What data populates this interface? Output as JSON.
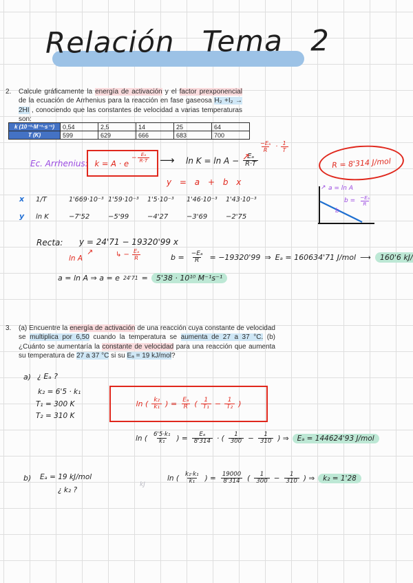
{
  "title": {
    "text": "Relación Tema 2"
  },
  "problem2": {
    "number": "2.",
    "segments": [
      {
        "v": "Calcule gráficamente la "
      },
      {
        "v": "energía de activación",
        "h": "pink"
      },
      {
        "v": " y el "
      },
      {
        "v": "factor prexponencial",
        "h": "pink"
      },
      {
        "v": " de la ecuación de Arrhenius para la reacción en fase gaseosa "
      },
      {
        "v": "H₂ +I₂ → 2HI",
        "h": "blue"
      },
      {
        "v": " , conociendo que las constantes de velocidad a varias temperaturas son:"
      }
    ],
    "table": {
      "k_label": "k (10⁻³·M⁻¹·s⁻¹)",
      "t_label": "T (K)",
      "k_values": [
        "0,54",
        "2,5",
        "14",
        "25",
        "64"
      ],
      "t_values": [
        "599",
        "629",
        "666",
        "683",
        "700"
      ]
    }
  },
  "work2": {
    "ec_label": "Ec. Arrhenius:",
    "arrhenius_boxed": [
      {
        "t": "txt",
        "v": "k = A · e"
      },
      {
        "t": "supfrac",
        "p": "−",
        "n": "Eₐ",
        "d": "R·T"
      }
    ],
    "arrow_right": "⟶",
    "ln_equation": [
      {
        "t": "txt",
        "v": "ln K = ln A −"
      },
      {
        "t": "frac",
        "n": "Eₐ",
        "d": "R·T"
      }
    ],
    "slope_arrow": "↗",
    "slope_note": [
      {
        "t": "frac",
        "n": "−Eₐ",
        "d": "R"
      },
      {
        "t": "txt",
        "v": "·"
      },
      {
        "t": "frac",
        "n": "1",
        "d": "T"
      }
    ],
    "linear_equation": "y = a + b x",
    "gas_constant": "R = 8'314 J/mol",
    "graph": {
      "a_arrow": "↗",
      "a_label": "a = ln A",
      "b_label": [
        {
          "t": "txt",
          "v": "b ="
        },
        {
          "t": "frac",
          "n": "−Eₐ",
          "d": "R"
        }
      ],
      "b_tick": "b"
    },
    "row_x": {
      "marker": "x",
      "head": "1/T",
      "values": [
        "1'669·10⁻³",
        "1'59·10⁻³",
        "1'5·10⁻³",
        "1'46·10⁻³",
        "1'43·10⁻³"
      ]
    },
    "row_y": {
      "marker": "y",
      "head": "ln K",
      "values": [
        "−7'52",
        "−5'99",
        "−4'27",
        "−3'69",
        "−2'75"
      ]
    },
    "recta_label": "Recta:",
    "recta_equation": "y = 24'71 − 19320'99 x",
    "nota_intercept_arrow": "↗",
    "nota_intercept": "ln A",
    "nota_slope": [
      {
        "t": "txt",
        "v": "↳ −"
      },
      {
        "t": "frac",
        "n": "Eₐ",
        "d": "R"
      }
    ],
    "slope_result": [
      {
        "t": "txt",
        "v": "b ="
      },
      {
        "t": "frac",
        "n": "−Eₐ",
        "d": "R"
      },
      {
        "t": "txt",
        "v": "= −19320'99"
      },
      {
        "t": "txt",
        "v": "⇒"
      },
      {
        "t": "txt",
        "v": "Eₐ = 160634'71 J/mol"
      },
      {
        "t": "txt",
        "v": "⟶"
      },
      {
        "t": "hl",
        "v": "160'6 kJ/mol"
      }
    ],
    "intercept_result": [
      {
        "t": "txt",
        "v": "a = ln A ⇒ a = e"
      },
      {
        "t": "sup",
        "v": "24'71"
      },
      {
        "t": "txt",
        "v": "="
      },
      {
        "t": "hl",
        "v": "5'38 · 10¹⁰ M⁻¹s⁻¹"
      }
    ]
  },
  "problem3": {
    "number": "3.",
    "segments": [
      {
        "v": "(a) Encuentre la "
      },
      {
        "v": "energía de activación",
        "h": "pink"
      },
      {
        "v": " de una reacción cuya constante de velocidad se "
      },
      {
        "v": "multiplica por 6,50",
        "h": "blue"
      },
      {
        "v": " cuando la temperatura se "
      },
      {
        "v": "aumenta de 27 a 37 °C.",
        "h": "blue"
      },
      {
        "v": " (b) ¿Cuánto se aumentaría la "
      },
      {
        "v": "constante de velocidad",
        "h": "pink"
      },
      {
        "v": " para una reacción que aumenta su temperatura de "
      },
      {
        "v": "27 a 37 °C",
        "h": "blue"
      },
      {
        "v": " si su "
      },
      {
        "v": "Eₐ = 19 kJ/mol",
        "h": "blue"
      },
      {
        "v": "?"
      }
    ]
  },
  "work3": {
    "a_label": "a)",
    "a_question": "¿ Eₐ ?",
    "given_k": "k₂ = 6'5 · k₁",
    "given_t1": "T₁ = 300 K",
    "given_t2": "T₂ = 310 K",
    "boxed_formula": [
      {
        "t": "txt",
        "v": "ln ("
      },
      {
        "t": "frac",
        "n": "k₂",
        "d": "k₁"
      },
      {
        "t": "txt",
        "v": ") ="
      },
      {
        "t": "frac",
        "n": "Eₐ",
        "d": "R"
      },
      {
        "t": "txt",
        "v": "("
      },
      {
        "t": "frac",
        "n": "1",
        "d": "T₁"
      },
      {
        "t": "txt",
        "v": "−"
      },
      {
        "t": "frac",
        "n": "1",
        "d": "T₂"
      },
      {
        "t": "txt",
        "v": ")"
      }
    ],
    "calc_a": [
      {
        "t": "txt",
        "v": "ln ("
      },
      {
        "t": "frac",
        "n": "6'5·k₁",
        "d": "k₁"
      },
      {
        "t": "txt",
        "v": ") ="
      },
      {
        "t": "frac",
        "n": "Eₐ",
        "d": "8'314"
      },
      {
        "t": "txt",
        "v": "· ("
      },
      {
        "t": "frac",
        "n": "1",
        "d": "300"
      },
      {
        "t": "txt",
        "v": "−"
      },
      {
        "t": "frac",
        "n": "1",
        "d": "310"
      },
      {
        "t": "txt",
        "v": ") ⇒"
      },
      {
        "t": "hl",
        "v": "Eₐ = 144624'93 J/mol"
      }
    ],
    "b_label": "b)",
    "b_given": "Eₐ = 19 kJ/mol",
    "b_question": "¿ k₂ ?",
    "b_pencil": "kJ",
    "calc_b": [
      {
        "t": "txt",
        "v": "ln ("
      },
      {
        "t": "frac",
        "n": "k₂·k₁",
        "d": "k₁"
      },
      {
        "t": "txt",
        "v": ") ="
      },
      {
        "t": "frac",
        "n": "19000",
        "d": "8'314"
      },
      {
        "t": "txt",
        "v": "("
      },
      {
        "t": "frac",
        "n": "1",
        "d": "300"
      },
      {
        "t": "txt",
        "v": "−"
      },
      {
        "t": "frac",
        "n": "1",
        "d": "310"
      },
      {
        "t": "txt",
        "v": ") ⇒"
      },
      {
        "t": "hl",
        "v": "k₂ = 1'28"
      }
    ]
  },
  "colors": {
    "red_ink": "#e0271c",
    "purple_ink": "#9948e0",
    "blue_ink": "#2470d4",
    "mint_highlight": "#bde8d5",
    "pink_highlight": "#fadbdd",
    "blue_highlight": "#cfe7f6",
    "title_highlight": "#9cc2e6",
    "table_header": "#4472c4"
  }
}
